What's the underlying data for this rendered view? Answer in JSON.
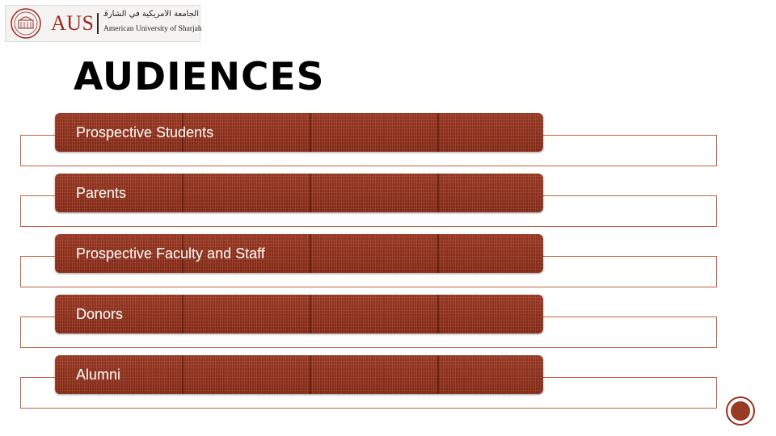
{
  "logo": {
    "abbr": "AUS",
    "arabic": "الجامعة الأمريكية في الشارقة",
    "english": "American University of Sharjah"
  },
  "slide": {
    "title": "AUDIENCES",
    "items": [
      {
        "label": "Prospective Students"
      },
      {
        "label": "Parents"
      },
      {
        "label": "Prospective Faculty and Staff"
      },
      {
        "label": "Donors"
      },
      {
        "label": "Alumni"
      }
    ]
  },
  "colors": {
    "accent": "#9a2b22",
    "bar": "#9a3520",
    "outline": "#c4623f"
  }
}
